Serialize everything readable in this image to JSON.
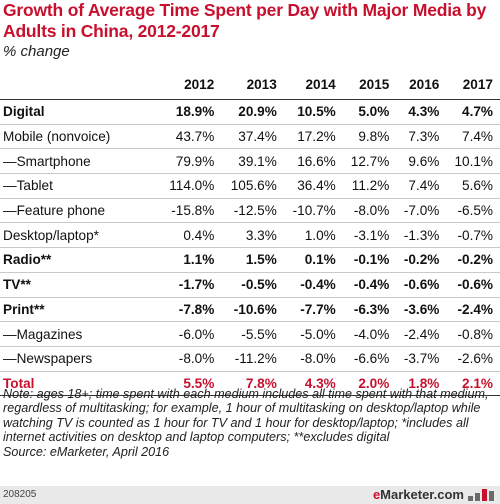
{
  "header": {
    "title": "Growth of Average Time Spent per Day with Major Media by Adults in China, 2012-2017",
    "subtitle": "% change"
  },
  "chart_data": {
    "type": "table",
    "title": "Growth of Average Time Spent per Day with Major Media by Adults in China, 2012-2017",
    "subtitle": "% change",
    "columns": [
      "",
      "2012",
      "2013",
      "2014",
      "2015",
      "2016",
      "2017"
    ],
    "rows": [
      {
        "label": "Digital",
        "values": [
          "18.9%",
          "20.9%",
          "10.5%",
          "5.0%",
          "4.3%",
          "4.7%"
        ]
      },
      {
        "label": "Mobile (nonvoice)",
        "values": [
          "43.7%",
          "37.4%",
          "17.2%",
          "9.8%",
          "7.3%",
          "7.4%"
        ]
      },
      {
        "label": "—Smartphone",
        "values": [
          "79.9%",
          "39.1%",
          "16.6%",
          "12.7%",
          "9.6%",
          "10.1%"
        ]
      },
      {
        "label": "—Tablet",
        "values": [
          "114.0%",
          "105.6%",
          "36.4%",
          "11.2%",
          "7.4%",
          "5.6%"
        ]
      },
      {
        "label": "—Feature phone",
        "values": [
          "-15.8%",
          "-12.5%",
          "-10.7%",
          "-8.0%",
          "-7.0%",
          "-6.5%"
        ]
      },
      {
        "label": "Desktop/laptop*",
        "values": [
          "0.4%",
          "3.3%",
          "1.0%",
          "-3.1%",
          "-1.3%",
          "-0.7%"
        ]
      },
      {
        "label": "Radio**",
        "values": [
          "1.1%",
          "1.5%",
          "0.1%",
          "-0.1%",
          "-0.2%",
          "-0.2%"
        ]
      },
      {
        "label": "TV**",
        "values": [
          "-1.7%",
          "-0.5%",
          "-0.4%",
          "-0.4%",
          "-0.6%",
          "-0.6%"
        ]
      },
      {
        "label": "Print**",
        "values": [
          "-7.8%",
          "-10.6%",
          "-7.7%",
          "-6.3%",
          "-3.6%",
          "-2.4%"
        ]
      },
      {
        "label": "—Magazines",
        "values": [
          "-6.0%",
          "-5.5%",
          "-5.0%",
          "-4.0%",
          "-2.4%",
          "-0.8%"
        ]
      },
      {
        "label": "—Newspapers",
        "values": [
          "-8.0%",
          "-11.2%",
          "-8.0%",
          "-6.6%",
          "-3.7%",
          "-2.6%"
        ]
      },
      {
        "label": "Total",
        "values": [
          "5.5%",
          "7.8%",
          "4.3%",
          "2.0%",
          "1.8%",
          "2.1%"
        ]
      }
    ],
    "bold_rows": [
      "Digital",
      "Radio**",
      "TV**",
      "Print**",
      "Total"
    ],
    "highlight_row": "Total"
  },
  "note": "Note: ages 18+; time spent with each medium includes all time spent with that medium, regardless of multitasking; for example, 1 hour of multitasking on desktop/laptop while watching TV is counted as 1 hour for TV and 1 hour for desktop/laptop; *includes all internet activities on desktop and laptop computers; **excludes digital",
  "source": "Source: eMarketer, April 2016",
  "footer": {
    "id": "208205",
    "brand_e": "e",
    "brand_rest": "Marketer.com"
  },
  "colors": {
    "accent": "#c8102e",
    "footer_bg": "#e9e9e9"
  }
}
